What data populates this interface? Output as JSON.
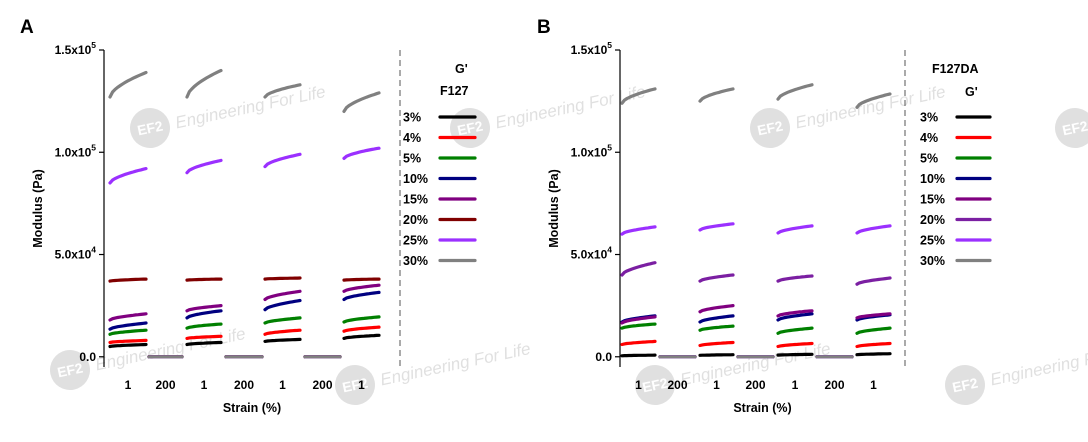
{
  "watermark": {
    "text": "Engineering For Life",
    "logo": "EF2",
    "color": "#c8c8c8"
  },
  "chart_data": [
    {
      "type": "line",
      "panel_label": "A",
      "material": "F127",
      "legend_title": "G'",
      "xlabel": "Strain (%)",
      "ylabel": "Modulus (Pa)",
      "ylim": [
        -5000,
        150000
      ],
      "yticks": [
        {
          "value": 0,
          "label": "0.0"
        },
        {
          "value": 50000,
          "label": "5.0x10",
          "exp": "4"
        },
        {
          "value": 100000,
          "label": "1.0x10",
          "exp": "5"
        },
        {
          "value": 150000,
          "label": "1.5x10",
          "exp": "5"
        }
      ],
      "segment_labels": [
        "1",
        "200",
        "1",
        "200",
        "1",
        "200",
        "1"
      ],
      "grid": false,
      "legend_position": "right",
      "series": [
        {
          "name": "3%",
          "color": "#000000",
          "values": [
            [
              5000,
              6000
            ],
            [
              0,
              0
            ],
            [
              6000,
              7000
            ],
            [
              0,
              0
            ],
            [
              7500,
              8500
            ],
            [
              0,
              0
            ],
            [
              9000,
              10500
            ]
          ]
        },
        {
          "name": "4%",
          "color": "#ff0000",
          "values": [
            [
              7000,
              8000
            ],
            [
              0,
              0
            ],
            [
              9000,
              10000
            ],
            [
              0,
              0
            ],
            [
              11000,
              13000
            ],
            [
              0,
              0
            ],
            [
              12500,
              14500
            ]
          ]
        },
        {
          "name": "5%",
          "color": "#008000",
          "values": [
            [
              11000,
              13000
            ],
            [
              0,
              0
            ],
            [
              14000,
              16000
            ],
            [
              0,
              0
            ],
            [
              16500,
              19000
            ],
            [
              0,
              0
            ],
            [
              17000,
              19500
            ]
          ]
        },
        {
          "name": "10%",
          "color": "#000080",
          "values": [
            [
              13500,
              16500
            ],
            [
              0,
              0
            ],
            [
              19000,
              22500
            ],
            [
              0,
              0
            ],
            [
              23000,
              27500
            ],
            [
              0,
              0
            ],
            [
              28000,
              31500
            ]
          ]
        },
        {
          "name": "15%",
          "color": "#800080",
          "values": [
            [
              18000,
              21000
            ],
            [
              0,
              0
            ],
            [
              22500,
              25000
            ],
            [
              0,
              0
            ],
            [
              28000,
              32000
            ],
            [
              0,
              0
            ],
            [
              32000,
              35000
            ]
          ]
        },
        {
          "name": "20%",
          "color": "#800000",
          "values": [
            [
              37000,
              38000
            ],
            [
              0,
              0
            ],
            [
              37500,
              38000
            ],
            [
              0,
              0
            ],
            [
              38000,
              38500
            ],
            [
              0,
              0
            ],
            [
              37500,
              38000
            ]
          ]
        },
        {
          "name": "25%",
          "color": "#9b30ff",
          "values": [
            [
              85000,
              92000
            ],
            [
              0,
              0
            ],
            [
              90000,
              96000
            ],
            [
              0,
              0
            ],
            [
              93000,
              99000
            ],
            [
              0,
              0
            ],
            [
              97000,
              102000
            ]
          ]
        },
        {
          "name": "30%",
          "color": "#808080",
          "values": [
            [
              127000,
              139000
            ],
            [
              0,
              0
            ],
            [
              127000,
              140000
            ],
            [
              0,
              0
            ],
            [
              127000,
              133000
            ],
            [
              0,
              0
            ],
            [
              120000,
              129000
            ]
          ]
        }
      ]
    },
    {
      "type": "line",
      "panel_label": "B",
      "material": "F127DA",
      "legend_title": "G'",
      "xlabel": "Strain (%)",
      "ylabel": "Modulus (Pa)",
      "ylim": [
        -5000,
        150000
      ],
      "yticks": [
        {
          "value": 0,
          "label": "0.0"
        },
        {
          "value": 50000,
          "label": "5.0x10",
          "exp": "4"
        },
        {
          "value": 100000,
          "label": "1.0x10",
          "exp": "5"
        },
        {
          "value": 150000,
          "label": "1.5x10",
          "exp": "5"
        }
      ],
      "segment_labels": [
        "1",
        "200",
        "1",
        "200",
        "1",
        "200",
        "1"
      ],
      "grid": false,
      "legend_position": "right",
      "series": [
        {
          "name": "3%",
          "color": "#000000",
          "values": [
            [
              500,
              800
            ],
            [
              0,
              0
            ],
            [
              700,
              1000
            ],
            [
              0,
              0
            ],
            [
              800,
              1200
            ],
            [
              0,
              0
            ],
            [
              1000,
              1500
            ]
          ]
        },
        {
          "name": "4%",
          "color": "#ff0000",
          "values": [
            [
              6000,
              7500
            ],
            [
              0,
              0
            ],
            [
              5500,
              7000
            ],
            [
              0,
              0
            ],
            [
              5000,
              6500
            ],
            [
              0,
              0
            ],
            [
              5000,
              6500
            ]
          ]
        },
        {
          "name": "5%",
          "color": "#008000",
          "values": [
            [
              14000,
              16000
            ],
            [
              0,
              0
            ],
            [
              13000,
              15000
            ],
            [
              0,
              0
            ],
            [
              11500,
              14000
            ],
            [
              0,
              0
            ],
            [
              11500,
              14000
            ]
          ]
        },
        {
          "name": "10%",
          "color": "#000080",
          "values": [
            [
              17000,
              20000
            ],
            [
              0,
              0
            ],
            [
              17000,
              20000
            ],
            [
              0,
              0
            ],
            [
              18000,
              21000
            ],
            [
              0,
              0
            ],
            [
              18000,
              20500
            ]
          ]
        },
        {
          "name": "15%",
          "color": "#800080",
          "values": [
            [
              16500,
              19500
            ],
            [
              0,
              0
            ],
            [
              22000,
              25000
            ],
            [
              0,
              0
            ],
            [
              20000,
              22500
            ],
            [
              0,
              0
            ],
            [
              19000,
              21000
            ]
          ]
        },
        {
          "name": "20%",
          "color": "#7b1fa2",
          "values": [
            [
              40000,
              46000
            ],
            [
              0,
              0
            ],
            [
              37000,
              40000
            ],
            [
              0,
              0
            ],
            [
              37000,
              39500
            ],
            [
              0,
              0
            ],
            [
              35500,
              38500
            ]
          ]
        },
        {
          "name": "25%",
          "color": "#9b30ff",
          "values": [
            [
              60000,
              63500
            ],
            [
              0,
              0
            ],
            [
              62000,
              65000
            ],
            [
              0,
              0
            ],
            [
              60500,
              64000
            ],
            [
              0,
              0
            ],
            [
              60500,
              64000
            ]
          ]
        },
        {
          "name": "30%",
          "color": "#808080",
          "values": [
            [
              124000,
              131000
            ],
            [
              0,
              0
            ],
            [
              125000,
              131000
            ],
            [
              0,
              0
            ],
            [
              126000,
              133000
            ],
            [
              0,
              0
            ],
            [
              122000,
              128500
            ]
          ]
        }
      ]
    }
  ]
}
